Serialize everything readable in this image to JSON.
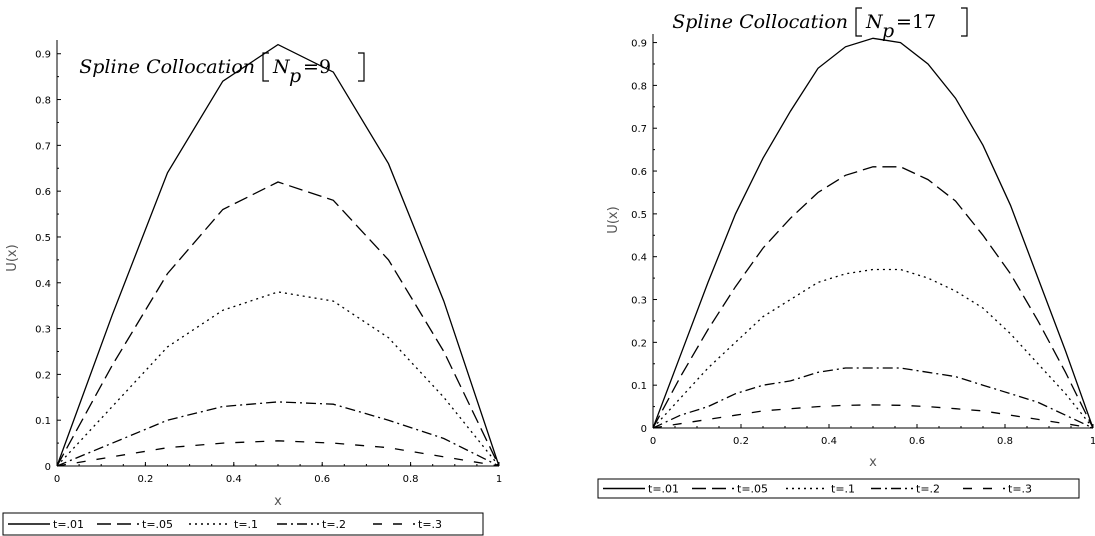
{
  "chart_data": [
    {
      "type": "line",
      "title": "Spline Collocation",
      "title_sub": "p",
      "title_eq": "N",
      "title_val": "9",
      "xlabel": "x",
      "ylabel": "U(x)",
      "xlim": [
        0,
        1
      ],
      "ylim": [
        0,
        0.93
      ],
      "xticks": [
        "0",
        "0.2",
        "0.4",
        "0.6",
        "0.8",
        "1"
      ],
      "yticks": [
        "0",
        "0.1",
        "0.2",
        "0.3",
        "0.4",
        "0.5",
        "0.6",
        "0.7",
        "0.8",
        "0.9"
      ],
      "grid": false,
      "legend": "bottom",
      "series": [
        {
          "name": "t=.01",
          "dash": "solid",
          "x": [
            0,
            0.125,
            0.25,
            0.375,
            0.5,
            0.625,
            0.75,
            0.875,
            1
          ],
          "values": [
            0,
            0.33,
            0.64,
            0.84,
            0.92,
            0.86,
            0.66,
            0.36,
            0
          ]
        },
        {
          "name": "t=.05",
          "dash": "long",
          "x": [
            0,
            0.125,
            0.25,
            0.375,
            0.5,
            0.625,
            0.75,
            0.875,
            1
          ],
          "values": [
            0,
            0.22,
            0.42,
            0.56,
            0.62,
            0.58,
            0.45,
            0.25,
            0
          ]
        },
        {
          "name": "t=.1",
          "dash": "dot",
          "x": [
            0,
            0.125,
            0.25,
            0.375,
            0.5,
            0.625,
            0.75,
            0.875,
            1
          ],
          "values": [
            0,
            0.13,
            0.26,
            0.34,
            0.38,
            0.36,
            0.28,
            0.15,
            0
          ]
        },
        {
          "name": "t=.2",
          "dash": "dashdot",
          "x": [
            0,
            0.125,
            0.25,
            0.375,
            0.5,
            0.625,
            0.75,
            0.875,
            1
          ],
          "values": [
            0,
            0.05,
            0.1,
            0.13,
            0.14,
            0.135,
            0.1,
            0.06,
            0
          ]
        },
        {
          "name": "t=.3",
          "dash": "spaced",
          "x": [
            0,
            0.125,
            0.25,
            0.375,
            0.5,
            0.625,
            0.75,
            0.875,
            1
          ],
          "values": [
            0,
            0.02,
            0.04,
            0.05,
            0.055,
            0.05,
            0.04,
            0.02,
            0
          ]
        }
      ]
    },
    {
      "type": "line",
      "title": "Spline Collocation",
      "title_sub": "p",
      "title_eq": "N",
      "title_val": "17",
      "xlabel": "x",
      "ylabel": "U(x)",
      "xlim": [
        0,
        1
      ],
      "ylim": [
        0,
        0.92
      ],
      "xticks": [
        "0",
        "0.2",
        "0.4",
        "0.6",
        "0.8",
        "1"
      ],
      "yticks": [
        "0",
        "0.1",
        "0.2",
        "0.3",
        "0.4",
        "0.5",
        "0.6",
        "0.7",
        "0.8",
        "0.9"
      ],
      "grid": false,
      "legend": "bottom",
      "series": [
        {
          "name": "t=.01",
          "dash": "solid",
          "x": [
            0,
            0.0625,
            0.125,
            0.1875,
            0.25,
            0.3125,
            0.375,
            0.4375,
            0.5,
            0.5625,
            0.625,
            0.6875,
            0.75,
            0.8125,
            0.875,
            0.9375,
            1
          ],
          "values": [
            0,
            0.17,
            0.34,
            0.5,
            0.63,
            0.74,
            0.84,
            0.89,
            0.91,
            0.9,
            0.85,
            0.77,
            0.66,
            0.52,
            0.35,
            0.18,
            0
          ]
        },
        {
          "name": "t=.05",
          "dash": "long",
          "x": [
            0,
            0.0625,
            0.125,
            0.1875,
            0.25,
            0.3125,
            0.375,
            0.4375,
            0.5,
            0.5625,
            0.625,
            0.6875,
            0.75,
            0.8125,
            0.875,
            0.9375,
            1
          ],
          "values": [
            0,
            0.12,
            0.23,
            0.33,
            0.42,
            0.49,
            0.55,
            0.59,
            0.61,
            0.61,
            0.58,
            0.53,
            0.45,
            0.36,
            0.25,
            0.13,
            0
          ]
        },
        {
          "name": "t=.1",
          "dash": "dot",
          "x": [
            0,
            0.0625,
            0.125,
            0.1875,
            0.25,
            0.3125,
            0.375,
            0.4375,
            0.5,
            0.5625,
            0.625,
            0.6875,
            0.75,
            0.8125,
            0.875,
            0.9375,
            1
          ],
          "values": [
            0,
            0.07,
            0.14,
            0.2,
            0.26,
            0.3,
            0.34,
            0.36,
            0.37,
            0.37,
            0.35,
            0.32,
            0.28,
            0.22,
            0.15,
            0.08,
            0
          ]
        },
        {
          "name": "t=.2",
          "dash": "dashdot",
          "x": [
            0,
            0.0625,
            0.125,
            0.1875,
            0.25,
            0.3125,
            0.375,
            0.4375,
            0.5,
            0.5625,
            0.625,
            0.6875,
            0.75,
            0.8125,
            0.875,
            0.9375,
            1
          ],
          "values": [
            0,
            0.03,
            0.05,
            0.08,
            0.1,
            0.11,
            0.13,
            0.14,
            0.14,
            0.14,
            0.13,
            0.12,
            0.1,
            0.08,
            0.06,
            0.03,
            0
          ]
        },
        {
          "name": "t=.3",
          "dash": "spaced",
          "x": [
            0,
            0.0625,
            0.125,
            0.1875,
            0.25,
            0.3125,
            0.375,
            0.4375,
            0.5,
            0.5625,
            0.625,
            0.6875,
            0.75,
            0.8125,
            0.875,
            0.9375,
            1
          ],
          "values": [
            0,
            0.01,
            0.02,
            0.03,
            0.04,
            0.045,
            0.05,
            0.053,
            0.054,
            0.053,
            0.05,
            0.045,
            0.04,
            0.03,
            0.02,
            0.01,
            0
          ]
        }
      ]
    }
  ]
}
